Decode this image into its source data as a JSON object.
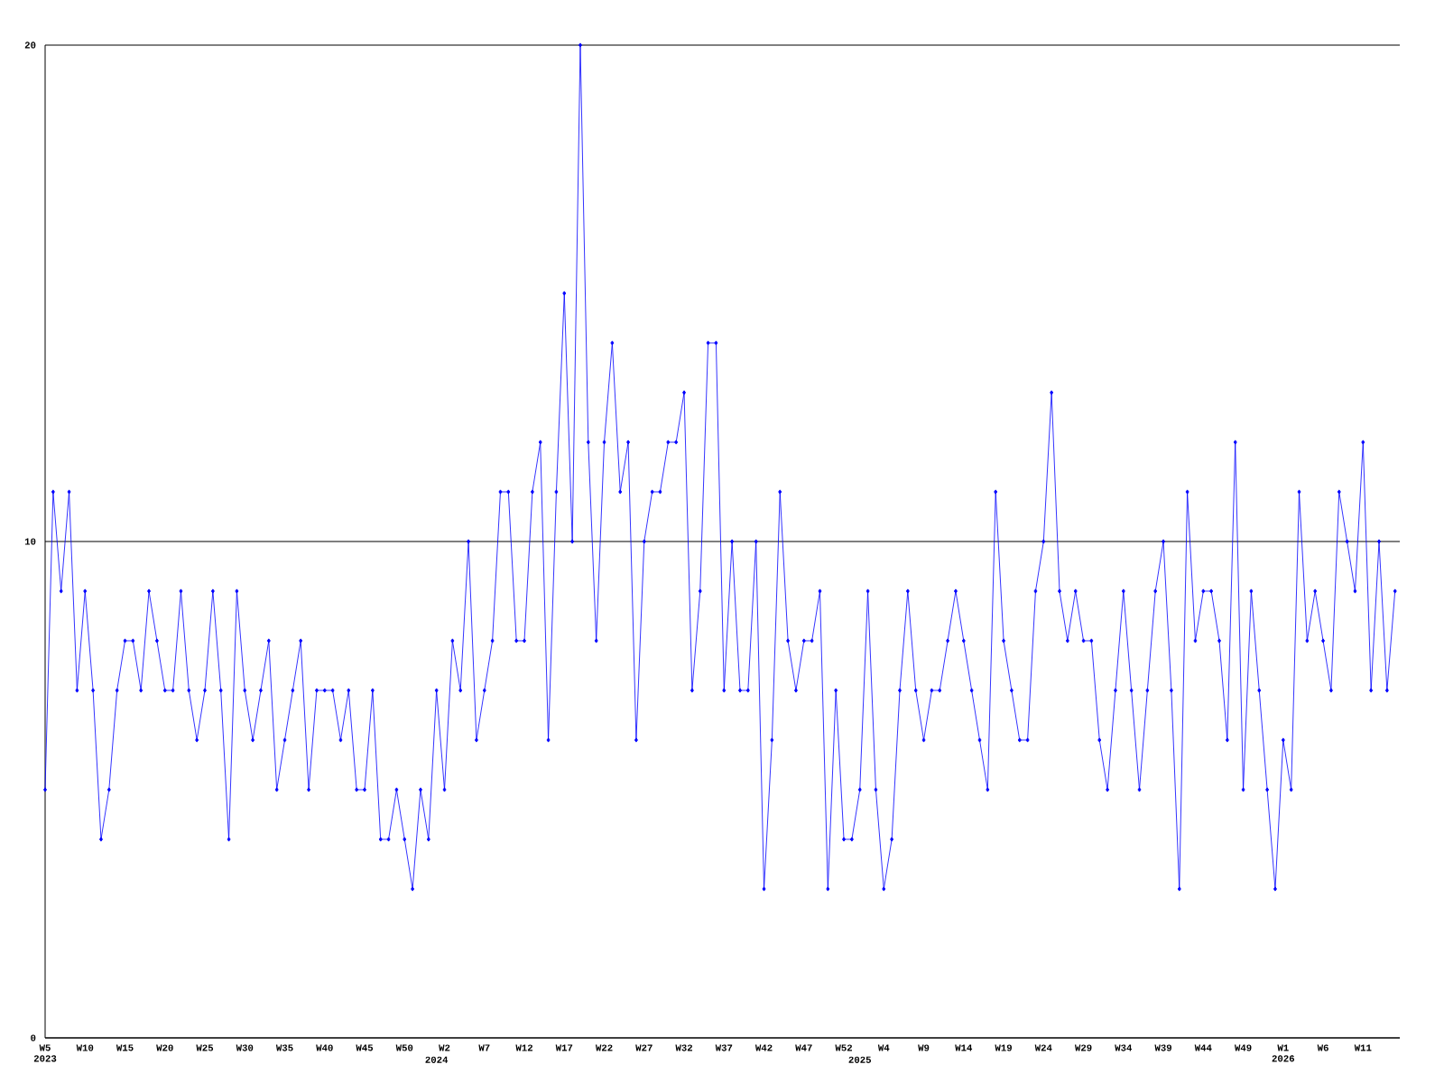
{
  "chart_data": {
    "type": "line",
    "color": "#0000ff",
    "marker": "diamond",
    "grid": "y",
    "ylim": [
      0,
      20
    ],
    "yticks": [
      0,
      10,
      20
    ],
    "categories": [
      "W5 2023",
      null,
      null,
      null,
      null,
      "W10",
      null,
      null,
      null,
      null,
      "W15",
      null,
      null,
      null,
      null,
      "W20",
      null,
      null,
      null,
      null,
      "W25",
      null,
      null,
      null,
      null,
      "W30",
      null,
      null,
      null,
      null,
      "W35",
      null,
      null,
      null,
      null,
      "W40",
      null,
      null,
      null,
      null,
      "W45",
      null,
      null,
      null,
      null,
      "W50",
      null,
      null,
      null,
      "2024",
      "W2",
      null,
      null,
      null,
      null,
      "W7",
      null,
      null,
      null,
      null,
      "W12",
      null,
      null,
      null,
      null,
      "W17",
      null,
      null,
      null,
      null,
      "W22",
      null,
      null,
      null,
      null,
      "W27",
      null,
      null,
      null,
      null,
      "W32",
      null,
      null,
      null,
      null,
      "W37",
      null,
      null,
      null,
      null,
      "W42",
      null,
      null,
      null,
      null,
      "W47",
      null,
      null,
      null,
      null,
      "W52",
      null,
      "2025",
      null,
      null,
      "W4",
      null,
      null,
      null,
      null,
      "W9",
      null,
      null,
      null,
      null,
      "W14",
      null,
      null,
      null,
      null,
      "W19",
      null,
      null,
      null,
      null,
      "W24",
      null,
      null,
      null,
      null,
      "W29",
      null,
      null,
      null,
      null,
      "W34",
      null,
      null,
      null,
      null,
      "W39",
      null,
      null,
      null,
      null,
      "W44",
      null,
      null,
      null,
      null,
      "W49",
      null,
      null,
      null,
      null,
      "W1 2026",
      null,
      null,
      null,
      null,
      "W6",
      null,
      null,
      null,
      null,
      "W11",
      null,
      null,
      null,
      null
    ],
    "values": [
      5,
      11,
      9,
      11,
      7,
      9,
      7,
      4,
      5,
      7,
      8,
      8,
      7,
      9,
      8,
      7,
      7,
      9,
      7,
      6,
      7,
      9,
      7,
      4,
      9,
      7,
      6,
      7,
      8,
      5,
      6,
      7,
      8,
      5,
      7,
      7,
      7,
      6,
      7,
      5,
      5,
      7,
      4,
      4,
      5,
      4,
      3,
      5,
      4,
      7,
      5,
      8,
      7,
      10,
      6,
      7,
      8,
      11,
      11,
      8,
      8,
      11,
      12,
      6,
      11,
      15,
      10,
      20,
      12,
      8,
      12,
      14,
      11,
      12,
      6,
      10,
      11,
      11,
      12,
      12,
      13,
      7,
      9,
      14,
      14,
      7,
      10,
      7,
      7,
      10,
      3,
      6,
      11,
      8,
      7,
      8,
      8,
      9,
      3,
      7,
      4,
      4,
      5,
      9,
      5,
      3,
      4,
      7,
      9,
      7,
      6,
      7,
      7,
      8,
      9,
      8,
      7,
      6,
      5,
      11,
      8,
      7,
      6,
      6,
      9,
      10,
      13,
      9,
      8,
      9,
      8,
      8,
      6,
      5,
      7,
      9,
      7,
      5,
      7,
      9,
      10,
      7,
      3,
      11,
      8,
      9,
      9,
      8,
      6,
      12,
      5,
      9,
      7,
      5,
      3,
      6,
      5,
      11,
      8,
      9,
      8,
      7,
      11,
      10,
      9,
      12,
      7,
      10,
      7,
      9
    ]
  }
}
